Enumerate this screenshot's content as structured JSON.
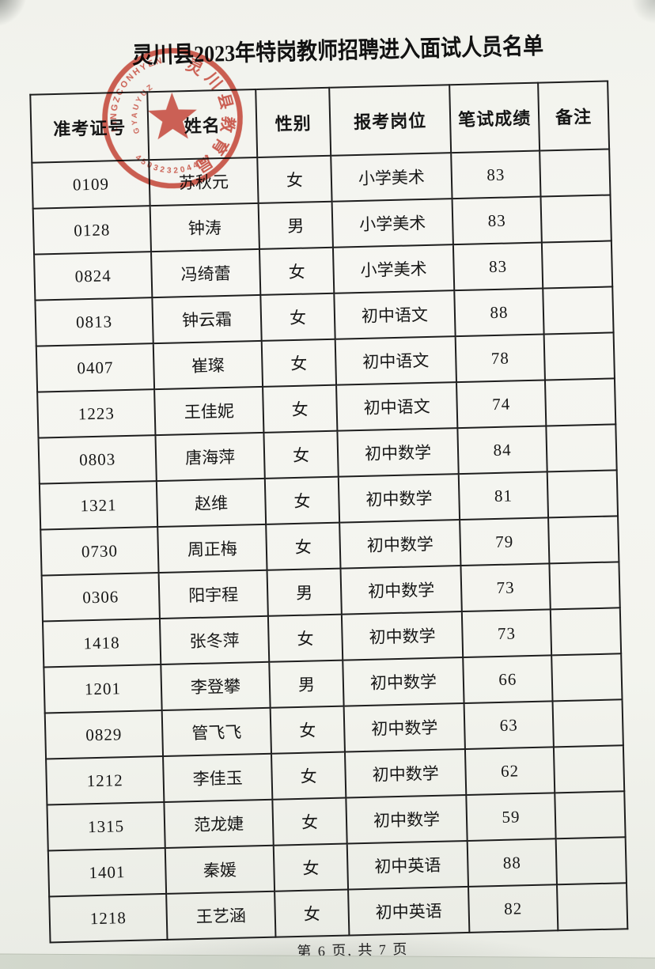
{
  "page": {
    "title": "灵川县2023年特岗教师招聘进入面试人员名单",
    "footer": "第 6 页, 共 7 页"
  },
  "seal": {
    "organization": "灵川县教育局",
    "latin_outer": "LINGZCONHYEN",
    "latin_inner": "GYAUYUZ",
    "serial_number": "450323204494",
    "color": "#c0392b"
  },
  "table": {
    "headers": [
      "准考证号",
      "姓名",
      "性别",
      "报考岗位",
      "笔试成绩",
      "备注"
    ],
    "rows": [
      [
        "0109",
        "苏秋元",
        "女",
        "小学美术",
        "83",
        ""
      ],
      [
        "0128",
        "钟涛",
        "男",
        "小学美术",
        "83",
        ""
      ],
      [
        "0824",
        "冯绮蕾",
        "女",
        "小学美术",
        "83",
        ""
      ],
      [
        "0813",
        "钟云霜",
        "女",
        "初中语文",
        "88",
        ""
      ],
      [
        "0407",
        "崔璨",
        "女",
        "初中语文",
        "78",
        ""
      ],
      [
        "1223",
        "王佳妮",
        "女",
        "初中语文",
        "74",
        ""
      ],
      [
        "0803",
        "唐海萍",
        "女",
        "初中数学",
        "84",
        ""
      ],
      [
        "1321",
        "赵维",
        "女",
        "初中数学",
        "81",
        ""
      ],
      [
        "0730",
        "周正梅",
        "女",
        "初中数学",
        "79",
        ""
      ],
      [
        "0306",
        "阳宇程",
        "男",
        "初中数学",
        "73",
        ""
      ],
      [
        "1418",
        "张冬萍",
        "女",
        "初中数学",
        "73",
        ""
      ],
      [
        "1201",
        "李登攀",
        "男",
        "初中数学",
        "66",
        ""
      ],
      [
        "0829",
        "管飞飞",
        "女",
        "初中数学",
        "63",
        ""
      ],
      [
        "1212",
        "李佳玉",
        "女",
        "初中数学",
        "62",
        ""
      ],
      [
        "1315",
        "范龙婕",
        "女",
        "初中数学",
        "59",
        ""
      ],
      [
        "1401",
        "秦媛",
        "女",
        "初中英语",
        "88",
        ""
      ],
      [
        "1218",
        "王艺涵",
        "女",
        "初中英语",
        "82",
        ""
      ]
    ]
  }
}
